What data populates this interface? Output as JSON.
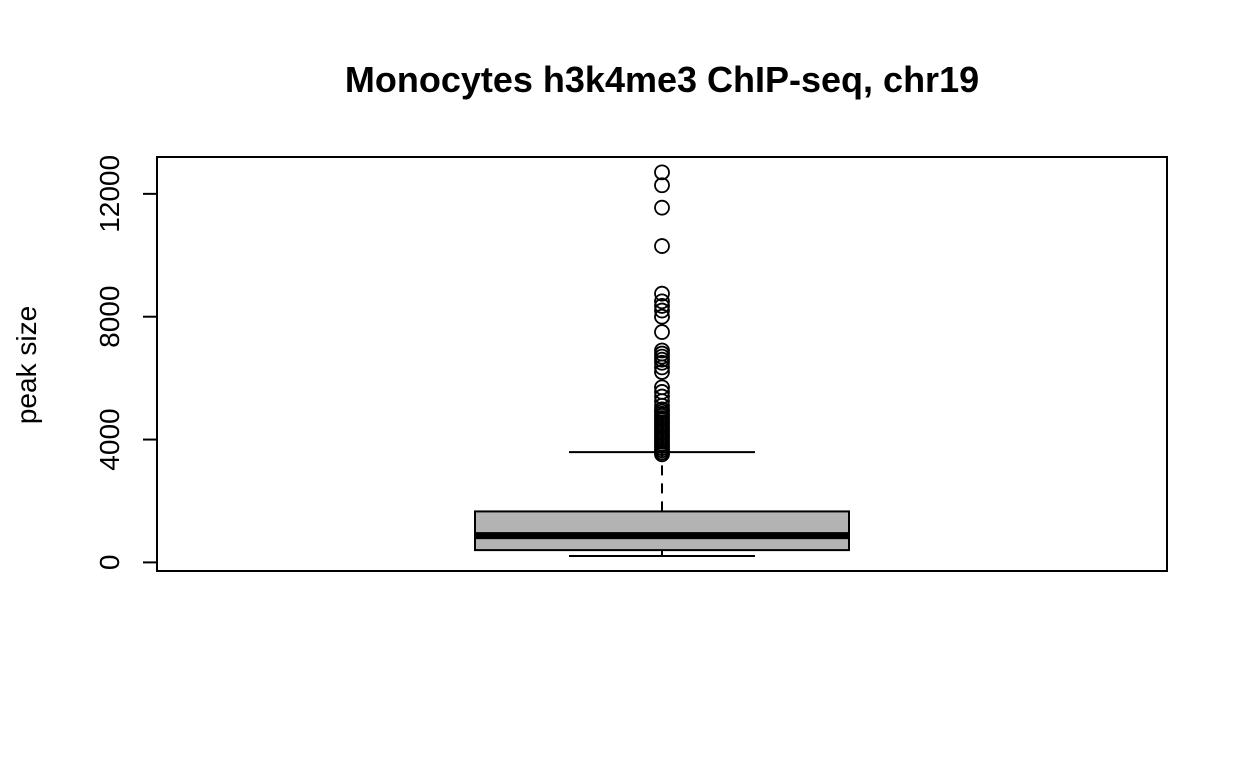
{
  "chart_data": {
    "type": "boxplot",
    "title": "Monocytes h3k4me3 ChIP-seq, chr19",
    "xlabel": "",
    "ylabel": "peak size",
    "ylim": [
      -280,
      13200
    ],
    "yticks": [
      0,
      4000,
      8000,
      12000
    ],
    "ytick_labels": [
      "0",
      "4000",
      "8000",
      "12000"
    ],
    "box": {
      "whisker_low": 210,
      "q1": 400,
      "median": 870,
      "q3": 1660,
      "whisker_high": 3590
    },
    "outliers": [
      3520,
      3580,
      3650,
      3720,
      3790,
      3860,
      3930,
      4000,
      4070,
      4140,
      4210,
      4280,
      4350,
      4420,
      4490,
      4560,
      4630,
      4700,
      4770,
      4840,
      4910,
      4980,
      5100,
      5250,
      5400,
      5550,
      5700,
      6200,
      6350,
      6500,
      6600,
      6700,
      6800,
      6900,
      7500,
      8000,
      8200,
      8350,
      8500,
      8750,
      10300,
      11550,
      12280,
      12700
    ],
    "grid": false,
    "box_color": "#b3b3b3",
    "line_color": "#000000"
  }
}
